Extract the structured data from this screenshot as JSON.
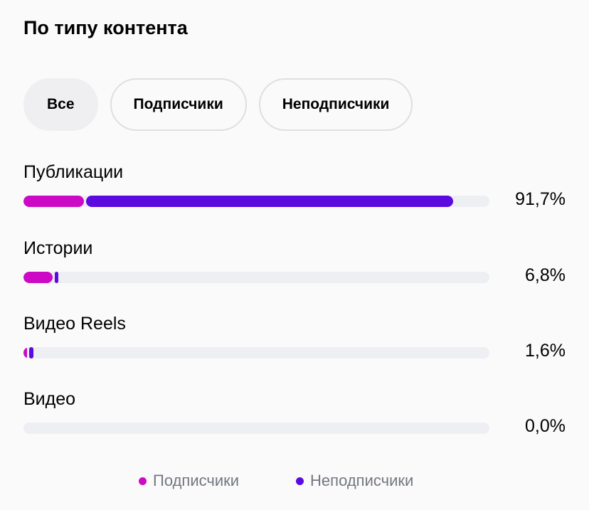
{
  "title": "По типу контента",
  "filters": [
    {
      "label": "Все",
      "active": true
    },
    {
      "label": "Подписчики",
      "active": false
    },
    {
      "label": "Неподписчики",
      "active": false
    }
  ],
  "colors": {
    "followers": "#cc09c4",
    "non_followers": "#5b0ae0",
    "track": "#eeeff2"
  },
  "chart_data": {
    "type": "bar",
    "orientation": "horizontal",
    "stacked": true,
    "unit": "%",
    "xlim": [
      0,
      100
    ],
    "categories": [
      "Публикации",
      "Истории",
      "Видео Reels",
      "Видео"
    ],
    "totals": [
      "91,7%",
      "6,8%",
      "1,6%",
      "0,0%"
    ],
    "series": [
      {
        "name": "Подписчики",
        "values": [
          13.0,
          6.2,
          0.7,
          0
        ]
      },
      {
        "name": "Неподписчики",
        "values": [
          78.7,
          0.6,
          0.9,
          0
        ]
      }
    ],
    "legend_position": "bottom"
  }
}
